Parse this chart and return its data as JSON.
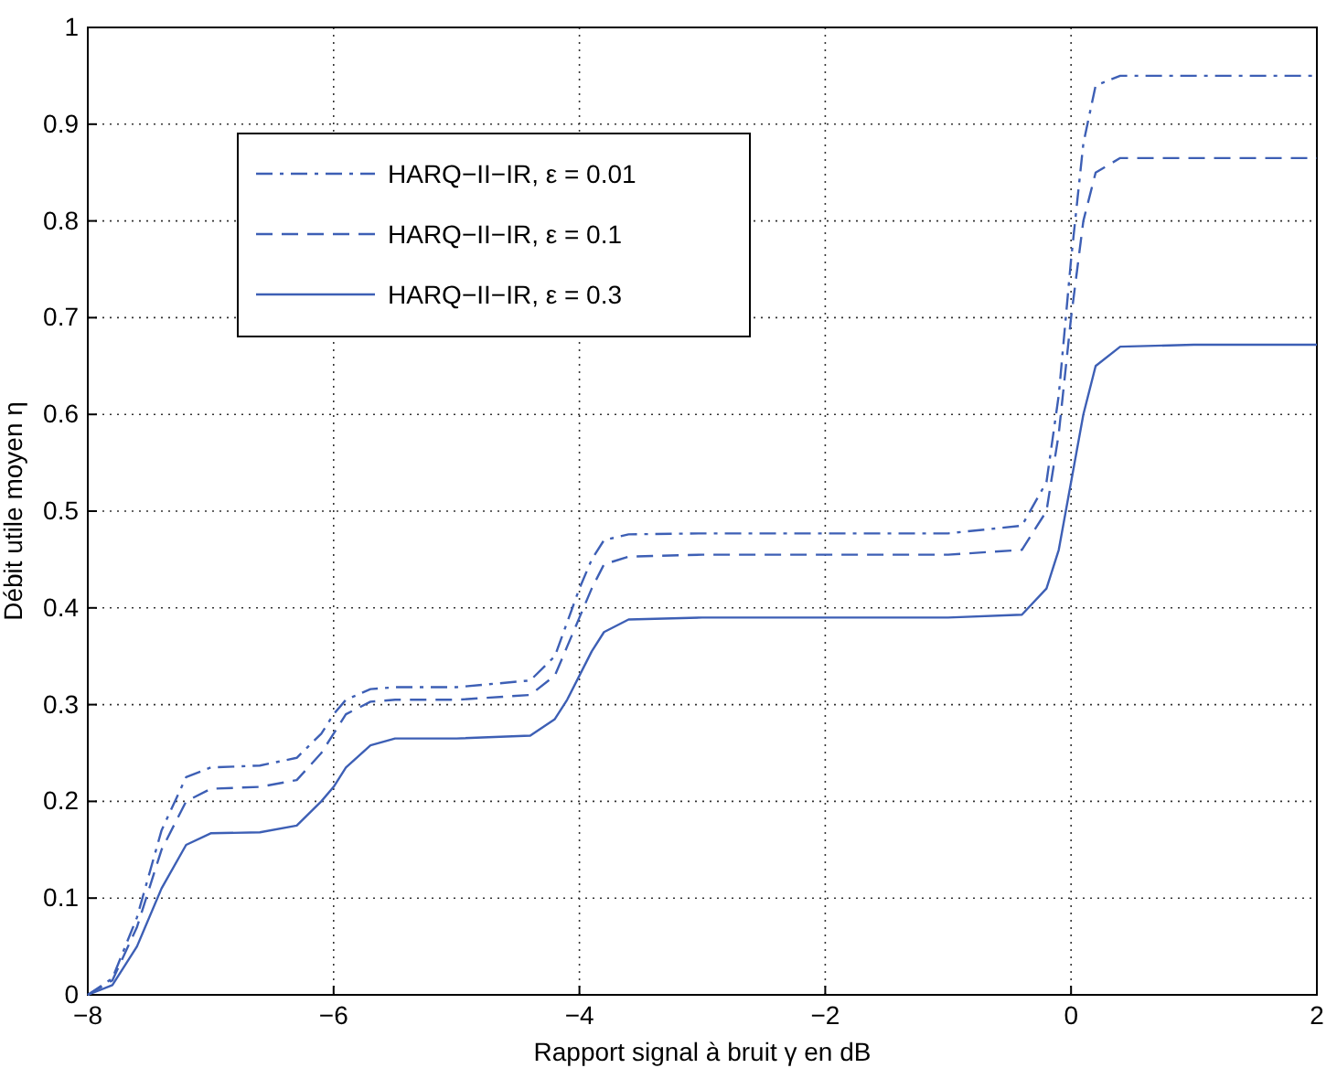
{
  "chart_data": {
    "type": "line",
    "xlabel": "Rapport signal à bruit γ en dB",
    "ylabel": "Débit utile moyen η",
    "x": [
      -8,
      -7.8,
      -7.6,
      -7.4,
      -7.2,
      -7.0,
      -6.6,
      -6.3,
      -6.1,
      -6.0,
      -5.9,
      -5.7,
      -5.5,
      -5,
      -4.4,
      -4.2,
      -4.1,
      -4.0,
      -3.9,
      -3.8,
      -3.6,
      -3,
      -1,
      -0.4,
      -0.2,
      -0.1,
      0,
      0.1,
      0.2,
      0.4,
      1,
      2
    ],
    "series": [
      {
        "name": "HARQ−II−IR, ε = 0.01",
        "color": "#3d5fb5",
        "line_style": "dashdot",
        "values": [
          0,
          0.017,
          0.08,
          0.17,
          0.225,
          0.235,
          0.237,
          0.245,
          0.27,
          0.29,
          0.305,
          0.316,
          0.318,
          0.318,
          0.325,
          0.35,
          0.385,
          0.42,
          0.45,
          0.47,
          0.476,
          0.477,
          0.477,
          0.485,
          0.53,
          0.62,
          0.76,
          0.88,
          0.94,
          0.95,
          0.95,
          0.95
        ]
      },
      {
        "name": "HARQ−II−IR, ε = 0.1",
        "color": "#3d5fb5",
        "line_style": "dashed",
        "values": [
          0,
          0.015,
          0.07,
          0.15,
          0.2,
          0.213,
          0.215,
          0.222,
          0.25,
          0.27,
          0.29,
          0.303,
          0.305,
          0.305,
          0.31,
          0.33,
          0.36,
          0.39,
          0.42,
          0.445,
          0.453,
          0.455,
          0.455,
          0.46,
          0.5,
          0.58,
          0.7,
          0.8,
          0.85,
          0.865,
          0.865,
          0.865
        ]
      },
      {
        "name": "HARQ−II−IR, ε = 0.3",
        "color": "#3d5fb5",
        "line_style": "solid",
        "values": [
          0,
          0.01,
          0.05,
          0.11,
          0.155,
          0.167,
          0.168,
          0.175,
          0.2,
          0.215,
          0.235,
          0.258,
          0.265,
          0.265,
          0.268,
          0.285,
          0.305,
          0.33,
          0.355,
          0.375,
          0.388,
          0.39,
          0.39,
          0.393,
          0.42,
          0.46,
          0.53,
          0.6,
          0.65,
          0.67,
          0.672,
          0.672
        ]
      }
    ],
    "xlim": [
      -8,
      2
    ],
    "xticks": [
      {
        "value": -8,
        "label": "−8"
      },
      {
        "value": -6,
        "label": "−6"
      },
      {
        "value": -4,
        "label": "−4"
      },
      {
        "value": -2,
        "label": "−2"
      },
      0,
      2
    ],
    "ylim": [
      0,
      1
    ],
    "yticks": [
      0,
      0.1,
      0.2,
      0.3,
      0.4,
      0.5,
      0.6,
      0.7,
      0.8,
      0.9,
      1
    ],
    "grid": true,
    "legend": "top left"
  }
}
